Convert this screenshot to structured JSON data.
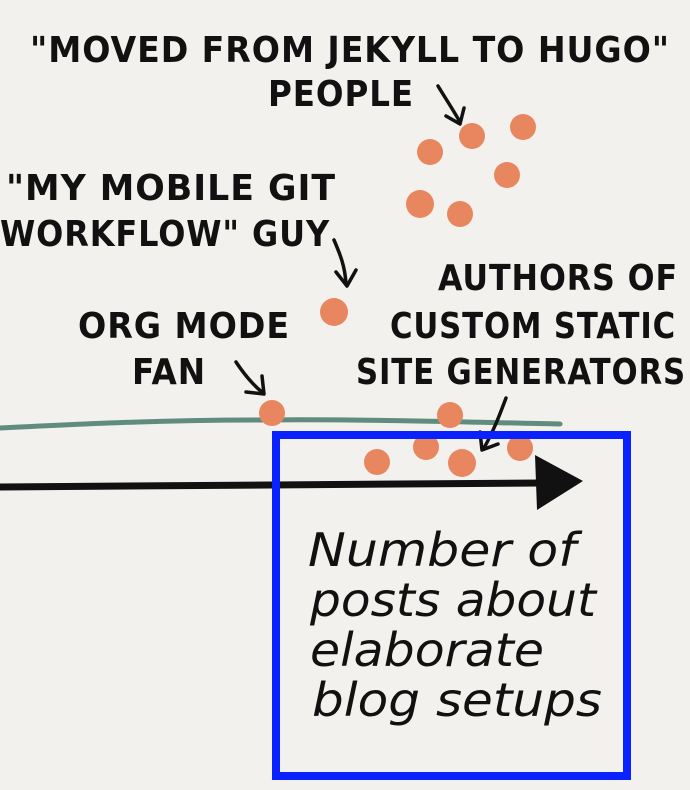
{
  "labels": {
    "jekyll_line1": "\"MOVED FROM JEKYLL TO HUGO\"",
    "jekyll_line2": "PEOPLE",
    "mobile_line1": "\"MY MOBILE GIT",
    "mobile_line2": "WORKFLOW\" GUY",
    "org_line1": "ORG MODE",
    "org_line2": "FAN",
    "authors_line1": "AUTHORS OF",
    "authors_line2": "CUSTOM STATIC",
    "authors_line3": "SITE GENERATORS"
  },
  "axis": {
    "line1": "Number of",
    "line2": "posts about",
    "line3": "elaborate",
    "line4": "blog setups"
  },
  "colors": {
    "dot": "#e8875f",
    "baseline": "#5f8c7e",
    "axis": "#111111",
    "highlight": "#0a22ff",
    "background": "#f3f1ed"
  }
}
